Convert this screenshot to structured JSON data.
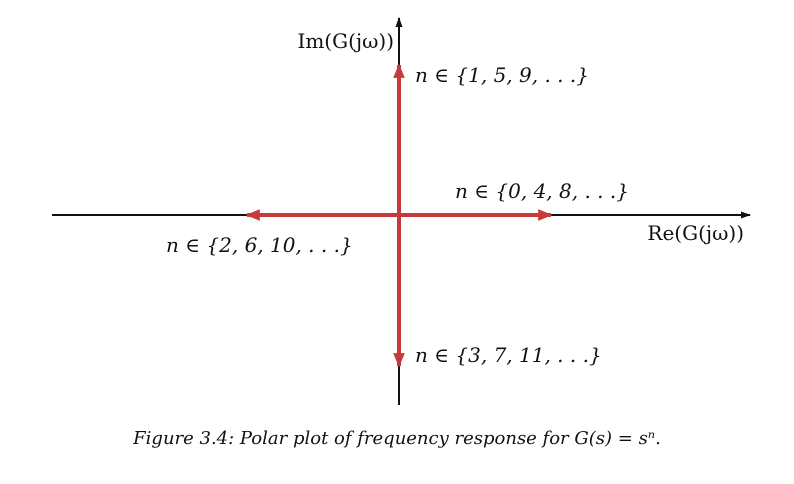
{
  "axes": {
    "real_label": "Re(G(jω))",
    "imag_label": "Im(G(jω))"
  },
  "branches": [
    {
      "direction": "up",
      "label": "n ∈ {1, 5, 9, . . .}"
    },
    {
      "direction": "right",
      "label": "n ∈ {0, 4, 8, . . .}"
    },
    {
      "direction": "left",
      "label": "n ∈ {2, 6, 10, . . .}"
    },
    {
      "direction": "down",
      "label": "n ∈ {3, 7, 11, . . .}"
    }
  ],
  "colors": {
    "axis": "#111111",
    "arrow": "#c73a3a"
  },
  "caption": "Figure 3.4: Polar plot of frequency response for G(s) = sⁿ."
}
